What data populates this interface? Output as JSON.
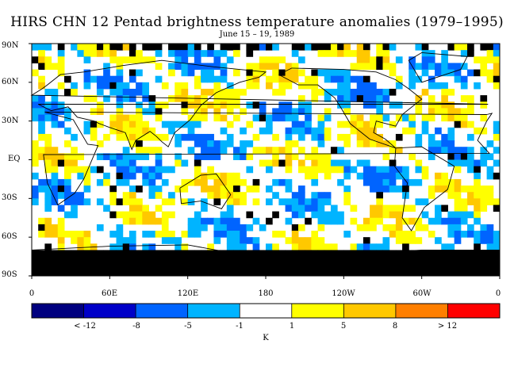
{
  "title": "HIRS CHN 12 Pentad brightness temperature anomalies (1979–1995)",
  "subtitle": "June 15 – 19, 1989",
  "y_axis_labels": [
    "90N",
    "60N",
    "30N",
    "EQ",
    "30S",
    "60S",
    "90S"
  ],
  "x_axis_labels": [
    "0",
    "60E",
    "120E",
    "180",
    "120W",
    "60W",
    "0"
  ],
  "colorbar": {
    "labels": [
      "< -12",
      "-8",
      "-5",
      "-1",
      "1",
      "5",
      "8",
      "> 12"
    ],
    "unit": "K",
    "colors": [
      "#00007f",
      "#0000c8",
      "#0064ff",
      "#00b4ff",
      "#ffffff",
      "#ffff00",
      "#ffc800",
      "#ff7f00",
      "#ff0000"
    ]
  },
  "map": {
    "projection": "cylindrical equidistant",
    "longitude_range": [
      0,
      360
    ],
    "latitude_range": [
      -90,
      90
    ],
    "missing_data_color": "#000000"
  }
}
